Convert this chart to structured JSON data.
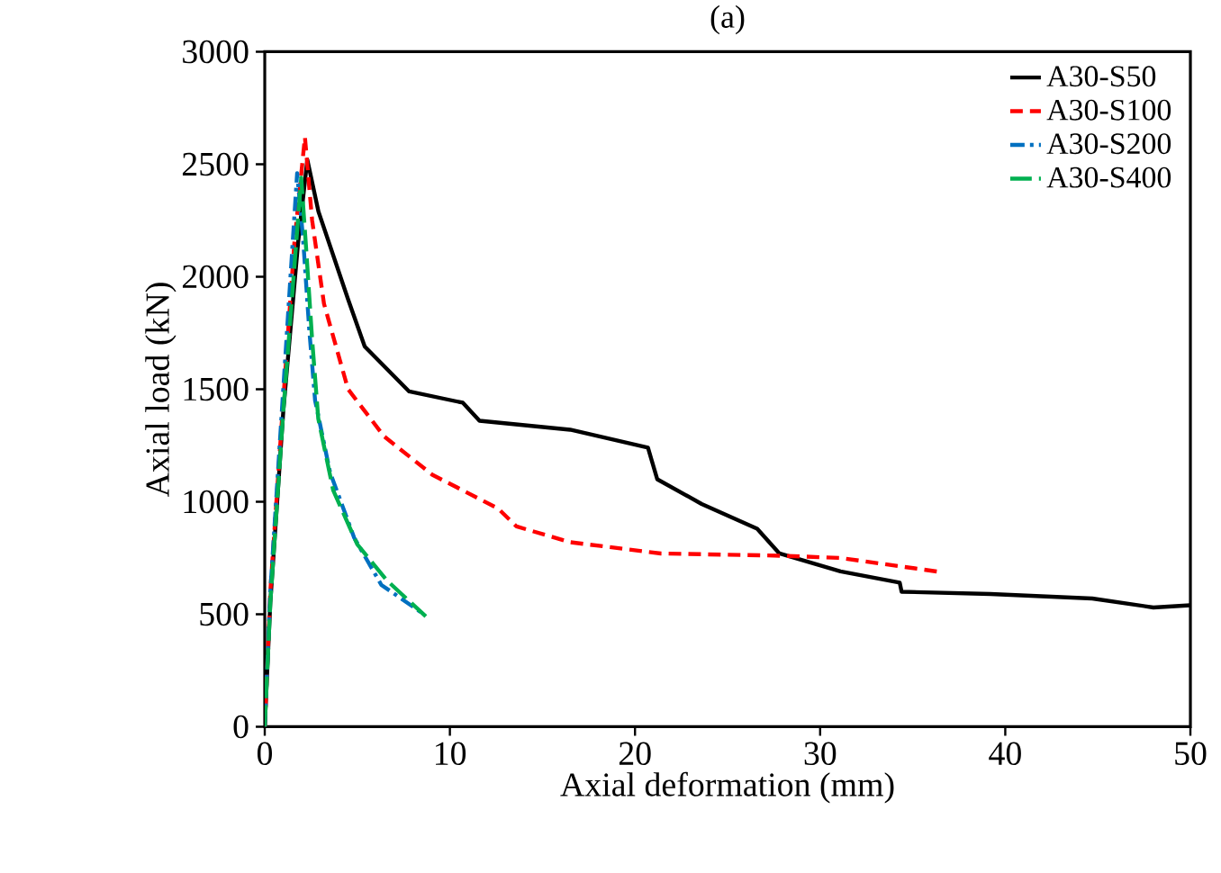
{
  "chart_data": {
    "type": "line",
    "title": "(a)",
    "xlabel": "Axial deformation (mm)",
    "ylabel": "Axial load (kN)",
    "xlim": [
      0,
      50
    ],
    "xticks": [
      0,
      10,
      20,
      30,
      40,
      50
    ],
    "ylim": [
      0,
      3000
    ],
    "yticks": [
      0,
      500,
      1000,
      1500,
      2000,
      2500,
      3000
    ],
    "legend": "top right",
    "grid": false,
    "marker": "none",
    "series": [
      {
        "name": "A30-S50",
        "color": "#000000",
        "line_style": "solid",
        "x": [
          0,
          0.3,
          1.0,
          1.8,
          2.3,
          2.9,
          4.5,
          5.4,
          7.8,
          10.7,
          11.6,
          16.5,
          20.7,
          21.2,
          23.6,
          26.6,
          27.8,
          31.1,
          34.3,
          34.4,
          39.2,
          44.7,
          48.0,
          50
        ],
        "values": [
          0,
          550,
          1400,
          2150,
          2520,
          2290,
          1900,
          1690,
          1490,
          1440,
          1360,
          1320,
          1240,
          1100,
          990,
          880,
          770,
          690,
          640,
          600,
          590,
          570,
          530,
          540
        ]
      },
      {
        "name": "A30-S100",
        "color": "#ff0000",
        "line_style": "dashed",
        "x": [
          0,
          0.3,
          1.0,
          1.6,
          2.17,
          2.56,
          3.2,
          4.5,
          6.45,
          9.05,
          10.0,
          12.6,
          13.6,
          16.5,
          21.4,
          27.9,
          31.1,
          36.3
        ],
        "values": [
          0,
          600,
          1450,
          2150,
          2620,
          2250,
          1880,
          1500,
          1290,
          1120,
          1080,
          970,
          890,
          820,
          770,
          760,
          750,
          690
        ]
      },
      {
        "name": "A30-S200",
        "color": "#0070c0",
        "line_style": "dashdot",
        "x": [
          0,
          0.3,
          1.0,
          1.75,
          2.07,
          2.4,
          2.72,
          3.53,
          4.83,
          6.3,
          8.6
        ],
        "values": [
          0,
          600,
          1500,
          2460,
          2170,
          1770,
          1450,
          1130,
          840,
          630,
          500
        ]
      },
      {
        "name": "A30-S400",
        "color": "#00b050",
        "line_style": "longdash",
        "x": [
          0,
          0.3,
          1.0,
          1.97,
          2.24,
          2.56,
          2.89,
          3.7,
          5.0,
          6.6,
          8.7
        ],
        "values": [
          0,
          550,
          1400,
          2440,
          2120,
          1720,
          1370,
          1050,
          810,
          650,
          490
        ]
      }
    ]
  }
}
